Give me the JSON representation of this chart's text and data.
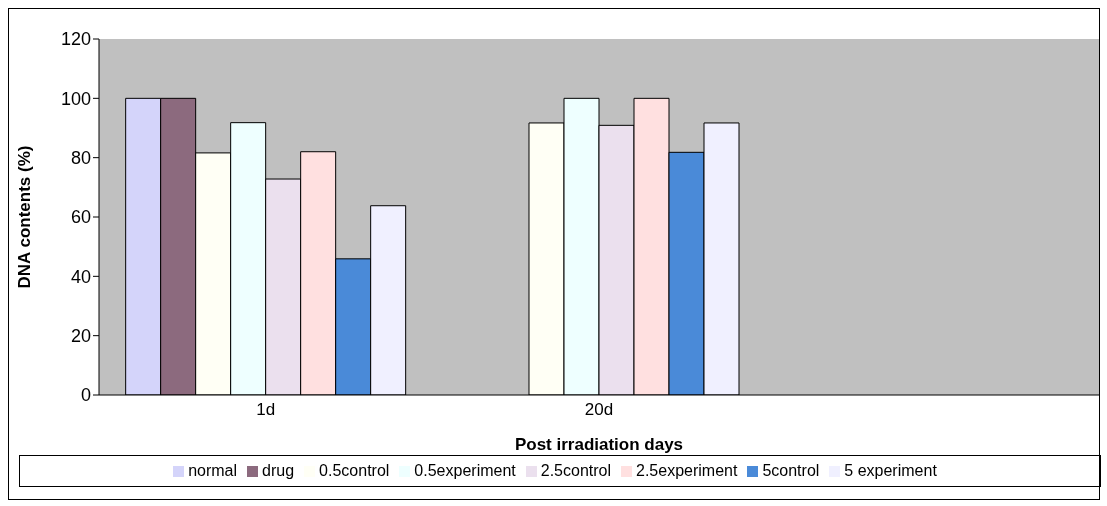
{
  "chart_data": {
    "type": "bar",
    "xlabel": "Post irradiation days",
    "ylabel": "DNA contents (%)",
    "categories": [
      "1d",
      "20d",
      null
    ],
    "series": [
      {
        "name": "normal",
        "color": "#d4d4fa",
        "values": [
          100,
          null,
          null
        ]
      },
      {
        "name": "drug",
        "color": "#8c6a7e",
        "values": [
          100,
          null,
          null
        ]
      },
      {
        "name": "0.5control",
        "color": "#fffff5",
        "values": [
          81.6,
          91.7,
          null
        ]
      },
      {
        "name": "0.5experiment",
        "color": "#eeffff",
        "values": [
          91.8,
          100,
          null
        ]
      },
      {
        "name": "2.5control",
        "color": "#ebe0ee",
        "values": [
          72.8,
          90.9,
          null
        ]
      },
      {
        "name": "2.5experiment",
        "color": "#ffe0e0",
        "values": [
          82,
          100,
          null
        ]
      },
      {
        "name": "5control",
        "color": "#4a8ad8",
        "values": [
          45.9,
          81.8,
          null
        ]
      },
      {
        "name": "5 experiment",
        "color": "#f0f0ff",
        "values": [
          63.8,
          91.7,
          null
        ]
      }
    ],
    "ylim": [
      0,
      120
    ],
    "yticks": [
      0,
      20,
      40,
      60,
      80,
      100,
      120
    ],
    "grid": false,
    "legend": "bottom"
  }
}
